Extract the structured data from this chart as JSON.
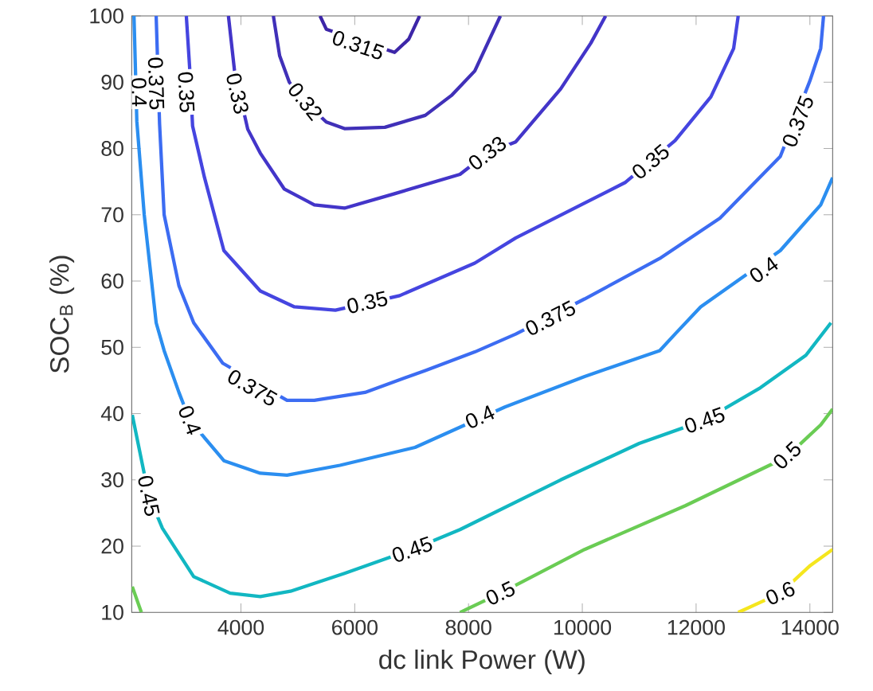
{
  "chart_data": {
    "type": "line",
    "xlabel": "dc link Power (W)",
    "ylabel": "SOC$_{B}$ (%)",
    "xlim": [
      2080,
      14400
    ],
    "ylim": [
      10,
      100
    ],
    "xticks": [
      4000,
      6000,
      8000,
      10000,
      12000,
      14000
    ],
    "yticks": [
      10,
      20,
      30,
      40,
      50,
      60,
      70,
      80,
      90,
      100
    ],
    "series": [
      {
        "color": "#3d26a8",
        "x": [
          5390,
          5500,
          6700,
          6950,
          7140
        ],
        "values": [
          100,
          98,
          94.5,
          96.5,
          100
        ]
      },
      {
        "color": "#4030b8",
        "x": [
          4570,
          4680,
          4850,
          5130,
          5500,
          5820,
          6530,
          7240,
          7700,
          8110,
          8560
        ],
        "values": [
          100,
          94,
          90,
          87,
          84,
          83,
          83.2,
          85,
          88,
          91.7,
          100
        ]
      },
      {
        "color": "#4335c9",
        "x": [
          3780,
          3890,
          4120,
          4340,
          4760,
          5290,
          5820,
          6710,
          7850,
          8330,
          8830,
          9620,
          10150,
          10410
        ],
        "values": [
          100,
          91.5,
          82.9,
          79.3,
          73.9,
          71.5,
          71,
          73.2,
          76.1,
          79.3,
          81,
          89,
          95.9,
          100
        ]
      },
      {
        "color": "#4545e0",
        "x": [
          3040,
          3100,
          3150,
          3360,
          3700,
          4340,
          4940,
          5660,
          6790,
          8110,
          8830,
          10760,
          11630,
          12260,
          12660,
          12740
        ],
        "values": [
          100,
          92,
          83.4,
          75.6,
          64.6,
          58.5,
          56.1,
          55.6,
          57.8,
          62.7,
          66.5,
          74.9,
          81.2,
          87.8,
          95.1,
          100
        ]
      },
      {
        "color": "#3c6cf2",
        "x": [
          2510,
          2570,
          2650,
          2910,
          3170,
          3680,
          4810,
          5290,
          6180,
          7240,
          8110,
          8830,
          10040,
          11360,
          12420,
          13480,
          14000,
          14190,
          14240
        ],
        "values": [
          100,
          83.7,
          70,
          59.3,
          53.7,
          47.6,
          42,
          42,
          43.2,
          46.5,
          49.3,
          52,
          57.3,
          63.4,
          69.5,
          78.8,
          90.2,
          95.1,
          100
        ]
      },
      {
        "color": "#2b8ef0",
        "x": [
          2120,
          2170,
          2300,
          2510,
          2650,
          2910,
          3100,
          3700,
          4340,
          4810,
          5740,
          7060,
          8640,
          10040,
          11360,
          11630,
          12080,
          13480,
          14190,
          14400
        ],
        "values": [
          100,
          84.1,
          70,
          53.7,
          49.5,
          43.2,
          39,
          32.9,
          31,
          30.7,
          32.2,
          34.9,
          41,
          45.6,
          49.5,
          52,
          56.1,
          64.6,
          71.5,
          75.6
        ]
      },
      {
        "color": "#12b7c2",
        "x": [
          2090,
          2380,
          2620,
          3170,
          3810,
          4340,
          4870,
          5820,
          7010,
          7850,
          9620,
          11000,
          12150,
          13130,
          13930,
          14370
        ],
        "values": [
          39.8,
          27.6,
          22.7,
          15.4,
          12.9,
          12.4,
          13.2,
          15.9,
          19.5,
          22.5,
          30,
          35.5,
          39,
          43.9,
          48.8,
          53.7
        ]
      },
      {
        "color": "#6acc54",
        "x": [
          2090,
          2250
        ],
        "values": [
          13.9,
          10
        ]
      },
      {
        "color": "#6acc54",
        "x": [
          7850,
          8560,
          10040,
          11810,
          13580,
          14190,
          14400
        ],
        "values": [
          10,
          12.9,
          19.5,
          26.1,
          33.4,
          38.3,
          40.7
        ]
      },
      {
        "color": "#f5e61e",
        "x": [
          12740,
          13480,
          14010,
          14400
        ],
        "values": [
          10,
          12.9,
          17.1,
          19.5
        ]
      }
    ],
    "annotations": [
      {
        "text": "0.315",
        "x": 6060,
        "y": 95.6
      },
      {
        "text": "0.32",
        "x": 5130,
        "y": 87.1
      },
      {
        "text": "0.33",
        "x": 3940,
        "y": 88.3
      },
      {
        "text": "0.33",
        "x": 8330,
        "y": 79.3
      },
      {
        "text": "0.35",
        "x": 3040,
        "y": 88.5
      },
      {
        "text": "0.35",
        "x": 6220,
        "y": 56.8
      },
      {
        "text": "0.35",
        "x": 11200,
        "y": 78
      },
      {
        "text": "0.375",
        "x": 2510,
        "y": 89.8
      },
      {
        "text": "0.375",
        "x": 4200,
        "y": 43.9
      },
      {
        "text": "0.375",
        "x": 9440,
        "y": 54.4
      },
      {
        "text": "0.375",
        "x": 13790,
        "y": 84.1
      },
      {
        "text": "0.4",
        "x": 2210,
        "y": 88.5
      },
      {
        "text": "0.4",
        "x": 3100,
        "y": 39
      },
      {
        "text": "0.4",
        "x": 8200,
        "y": 39.5
      },
      {
        "text": "0.4",
        "x": 13190,
        "y": 61.7
      },
      {
        "text": "0.45",
        "x": 2380,
        "y": 27.6
      },
      {
        "text": "0.45",
        "x": 7010,
        "y": 19.5
      },
      {
        "text": "0.45",
        "x": 12150,
        "y": 39
      },
      {
        "text": "0.5",
        "x": 8560,
        "y": 12.9
      },
      {
        "text": "0.5",
        "x": 13600,
        "y": 33.7
      },
      {
        "text": "0.6",
        "x": 13480,
        "y": 12.9
      }
    ]
  }
}
